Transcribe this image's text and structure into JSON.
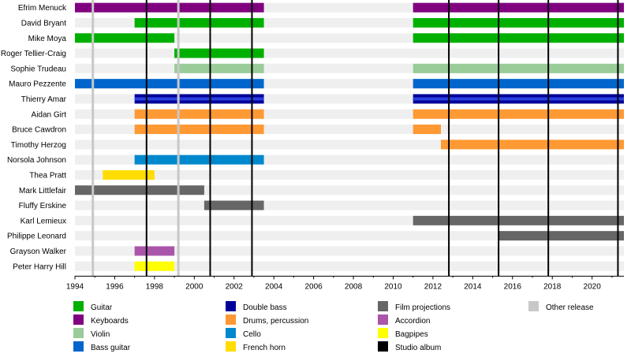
{
  "chart_data": {
    "type": "timeline",
    "x_range": [
      1994,
      2021.6
    ],
    "x_ticks": [
      "1994",
      "1996",
      "1998",
      "2000",
      "2002",
      "2004",
      "2006",
      "2008",
      "2010",
      "2012",
      "2014",
      "2016",
      "2018",
      "2020"
    ],
    "members": [
      {
        "name": "Efrim Menuck",
        "spans": [
          {
            "start": 1994.0,
            "end": 2003.5,
            "role": "Guitar"
          },
          {
            "start": 1994.0,
            "end": 2003.5,
            "role": "Keyboards"
          },
          {
            "start": 2011.0,
            "end": 2021.6,
            "role": "Guitar"
          },
          {
            "start": 2011.0,
            "end": 2021.6,
            "role": "Keyboards"
          }
        ]
      },
      {
        "name": "David Bryant",
        "spans": [
          {
            "start": 1997.0,
            "end": 2003.5,
            "role": "Guitar"
          },
          {
            "start": 2011.0,
            "end": 2021.6,
            "role": "Guitar"
          }
        ]
      },
      {
        "name": "Mike Moya",
        "spans": [
          {
            "start": 1994.0,
            "end": 1999.0,
            "role": "Guitar"
          },
          {
            "start": 2011.0,
            "end": 2021.6,
            "role": "Guitar"
          }
        ]
      },
      {
        "name": "Roger Tellier-Craig",
        "spans": [
          {
            "start": 1999.0,
            "end": 2003.5,
            "role": "Guitar"
          }
        ]
      },
      {
        "name": "Sophie Trudeau",
        "spans": [
          {
            "start": 1999.0,
            "end": 2003.5,
            "role": "Violin"
          },
          {
            "start": 2011.0,
            "end": 2021.6,
            "role": "Violin"
          }
        ]
      },
      {
        "name": "Mauro Pezzente",
        "spans": [
          {
            "start": 1994.0,
            "end": 2003.5,
            "role": "Bass guitar"
          },
          {
            "start": 2011.0,
            "end": 2021.6,
            "role": "Bass guitar"
          }
        ]
      },
      {
        "name": "Thierry Amar",
        "spans": [
          {
            "start": 1997.0,
            "end": 2003.5,
            "role": "Double bass"
          },
          {
            "start": 2011.0,
            "end": 2021.6,
            "role": "Double bass"
          }
        ]
      },
      {
        "name": "Aidan Girt",
        "spans": [
          {
            "start": 1997.0,
            "end": 2003.5,
            "role": "Drums, percussion"
          },
          {
            "start": 2011.0,
            "end": 2021.6,
            "role": "Drums, percussion"
          }
        ]
      },
      {
        "name": "Bruce Cawdron",
        "spans": [
          {
            "start": 1997.0,
            "end": 2003.5,
            "role": "Drums, percussion"
          },
          {
            "start": 2011.0,
            "end": 2012.4,
            "role": "Drums, percussion"
          }
        ]
      },
      {
        "name": "Timothy Herzog",
        "spans": [
          {
            "start": 2012.4,
            "end": 2021.6,
            "role": "Drums, percussion"
          }
        ]
      },
      {
        "name": "Norsola Johnson",
        "spans": [
          {
            "start": 1997.0,
            "end": 2003.5,
            "role": "Cello"
          }
        ]
      },
      {
        "name": "Thea Pratt",
        "spans": [
          {
            "start": 1995.4,
            "end": 1998.0,
            "role": "French horn"
          }
        ]
      },
      {
        "name": "Mark Littlefair",
        "spans": [
          {
            "start": 1994.0,
            "end": 2000.5,
            "role": "Film projections"
          }
        ]
      },
      {
        "name": "Fluffy Erskine",
        "spans": [
          {
            "start": 2000.5,
            "end": 2003.5,
            "role": "Film projections"
          }
        ]
      },
      {
        "name": "Karl Lemieux",
        "spans": [
          {
            "start": 2011.0,
            "end": 2021.6,
            "role": "Film projections"
          }
        ]
      },
      {
        "name": "Philippe Leonard",
        "spans": [
          {
            "start": 2015.3,
            "end": 2021.6,
            "role": "Film projections"
          }
        ]
      },
      {
        "name": "Grayson Walker",
        "spans": [
          {
            "start": 1997.0,
            "end": 1999.0,
            "role": "Accordion"
          }
        ]
      },
      {
        "name": "Peter Harry Hill",
        "spans": [
          {
            "start": 1997.0,
            "end": 1999.0,
            "role": "Bagpipes"
          }
        ]
      }
    ],
    "studio_albums": [
      1997.6,
      2000.8,
      2002.9,
      2012.8,
      2015.3,
      2017.8,
      2021.3
    ],
    "other_releases": [
      1994.9,
      1999.2
    ],
    "legend": [
      {
        "label": "Guitar",
        "color": "#00b000",
        "col": 0,
        "row": 0
      },
      {
        "label": "Keyboards",
        "color": "#800080",
        "col": 0,
        "row": 1
      },
      {
        "label": "Violin",
        "color": "#99cc99",
        "col": 0,
        "row": 2
      },
      {
        "label": "Bass guitar",
        "color": "#0066cc",
        "col": 0,
        "row": 3
      },
      {
        "label": "Double bass",
        "color": "#000099",
        "col": 1,
        "row": 0
      },
      {
        "label": "Drums, percussion",
        "color": "#ff9933",
        "col": 1,
        "row": 1
      },
      {
        "label": "Cello",
        "color": "#0088cc",
        "col": 1,
        "row": 2
      },
      {
        "label": "French horn",
        "color": "#ffdd00",
        "col": 1,
        "row": 3
      },
      {
        "label": "Film projections",
        "color": "#666666",
        "col": 2,
        "row": 0
      },
      {
        "label": "Accordion",
        "color": "#aa55aa",
        "col": 2,
        "row": 1
      },
      {
        "label": "Bagpipes",
        "color": "#ffff00",
        "col": 2,
        "row": 2
      },
      {
        "label": "Studio album",
        "color": "#000000",
        "col": 2,
        "row": 3
      },
      {
        "label": "Other release",
        "color": "#c8c8c8",
        "col": 3,
        "row": 0
      }
    ],
    "role_colors": {
      "Guitar": "#00b000",
      "Keyboards": "#800080",
      "Violin": "#99cc99",
      "Bass guitar": "#0066cc",
      "Double bass": "#000099",
      "Drums, percussion": "#ff9933",
      "Cello": "#0088cc",
      "French horn": "#ffdd00",
      "Film projections": "#666666",
      "Accordion": "#aa55aa",
      "Bagpipes": "#ffff00"
    }
  }
}
